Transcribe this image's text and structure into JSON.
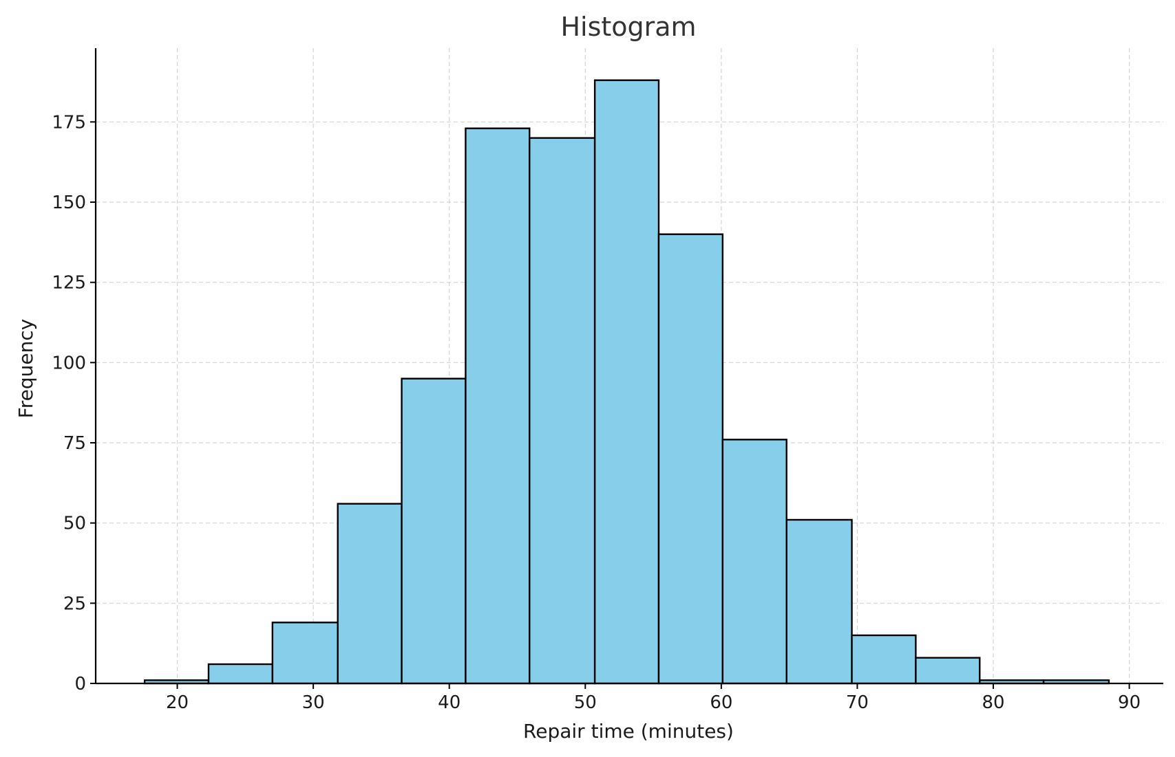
{
  "colors": {
    "bar_fill": "#87CEEB",
    "bar_edge": "#000000",
    "grid": "#d3d3d3"
  },
  "chart_data": {
    "type": "bar",
    "title": "Histogram",
    "xlabel": "Repair time (minutes)",
    "ylabel": "Frequency",
    "xlim": [
      14,
      92.5
    ],
    "ylim": [
      0,
      198
    ],
    "grid": true,
    "x_ticks": [
      20,
      30,
      40,
      50,
      60,
      70,
      80,
      90
    ],
    "y_ticks": [
      0,
      25,
      50,
      75,
      100,
      125,
      150,
      175
    ],
    "bins": [
      {
        "start": 17.6,
        "end": 22.3,
        "count": 1
      },
      {
        "start": 22.3,
        "end": 27.0,
        "count": 6
      },
      {
        "start": 27.0,
        "end": 31.8,
        "count": 19
      },
      {
        "start": 31.8,
        "end": 36.5,
        "count": 56
      },
      {
        "start": 36.5,
        "end": 41.2,
        "count": 95
      },
      {
        "start": 41.2,
        "end": 45.9,
        "count": 173
      },
      {
        "start": 45.9,
        "end": 50.7,
        "count": 170
      },
      {
        "start": 50.7,
        "end": 55.4,
        "count": 188
      },
      {
        "start": 55.4,
        "end": 60.1,
        "count": 140
      },
      {
        "start": 60.1,
        "end": 64.8,
        "count": 76
      },
      {
        "start": 64.8,
        "end": 69.6,
        "count": 51
      },
      {
        "start": 69.6,
        "end": 74.3,
        "count": 15
      },
      {
        "start": 74.3,
        "end": 79.0,
        "count": 8
      },
      {
        "start": 79.0,
        "end": 83.7,
        "count": 1
      },
      {
        "start": 83.7,
        "end": 88.5,
        "count": 1
      }
    ]
  }
}
